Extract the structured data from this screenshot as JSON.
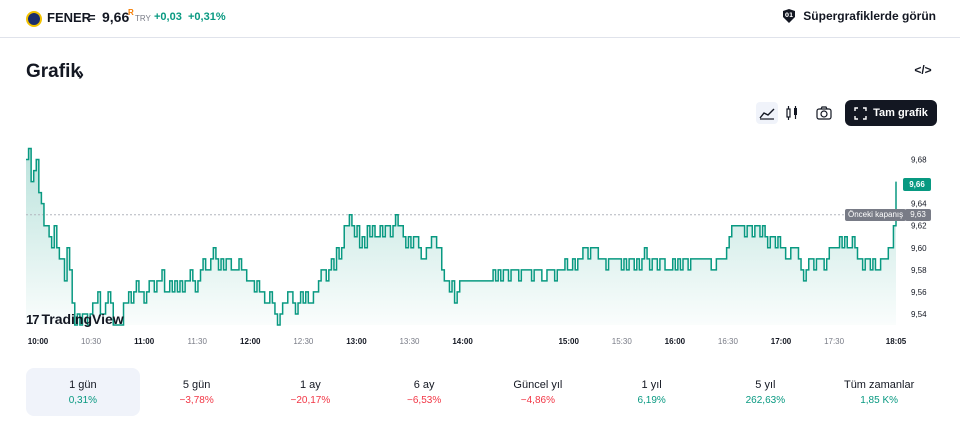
{
  "symbol": {
    "name": "FENER",
    "equals": "=",
    "price": "9,66",
    "r_mark": "R",
    "currency": "TRY",
    "change": "+0,03",
    "change_pct": "+0,31%"
  },
  "header": {
    "super_charts_label": "Süpergrafiklerde görün"
  },
  "section": {
    "title": "Grafik",
    "chevron": "›",
    "embed_label": "</>"
  },
  "toolbar": {
    "full_chart_label": "Tam grafik"
  },
  "icons": {
    "area": "area-chart-icon",
    "candles": "candles-icon",
    "camera": "camera-icon",
    "fullscreen": "fullscreen-icon",
    "super": "supercharts-icon"
  },
  "colors": {
    "accent_green": "#089981",
    "negative_red": "#f23645",
    "text": "#131722",
    "muted": "#787b86"
  },
  "chart_data": {
    "type": "area",
    "x_ticks": [
      "10:00",
      "10:30",
      "11:00",
      "11:30",
      "12:00",
      "12:30",
      "13:00",
      "13:30",
      "14:00",
      "15:00",
      "15:30",
      "16:00",
      "16:30",
      "17:00",
      "17:30",
      "18:05"
    ],
    "y_ticks": [
      "9,68",
      "9,66",
      "9,64",
      "9,62",
      "9,60",
      "9,58",
      "9,56",
      "9,54"
    ],
    "ylim": [
      9.53,
      9.695
    ],
    "previous_close_label": "Önceki kapanış",
    "previous_close_value": "9,63",
    "last_price_label": "9,66",
    "series": [
      {
        "values": [
          9.68,
          9.69,
          9.66,
          9.67,
          9.68,
          9.65,
          9.64,
          9.62,
          9.62,
          9.61,
          9.6,
          9.62,
          9.6,
          9.59,
          9.59,
          9.57,
          9.6,
          9.58,
          9.55,
          9.53,
          9.54,
          9.53,
          9.54,
          9.54,
          9.53,
          9.54,
          9.55,
          9.55,
          9.56,
          9.54,
          9.54,
          9.55,
          9.56,
          9.55,
          9.53,
          9.53,
          9.53,
          9.53,
          9.55,
          9.55,
          9.56,
          9.55,
          9.56,
          9.57,
          9.56,
          9.56,
          9.55,
          9.56,
          9.57,
          9.57,
          9.56,
          9.57,
          9.57,
          9.58,
          9.56,
          9.56,
          9.57,
          9.56,
          9.57,
          9.56,
          9.57,
          9.56,
          9.57,
          9.57,
          9.58,
          9.57,
          9.56,
          9.57,
          9.58,
          9.59,
          9.58,
          9.58,
          9.59,
          9.6,
          9.59,
          9.58,
          9.59,
          9.58,
          9.59,
          9.59,
          9.58,
          9.58,
          9.58,
          9.59,
          9.58,
          9.58,
          9.57,
          9.57,
          9.57,
          9.56,
          9.57,
          9.56,
          9.56,
          9.55,
          9.55,
          9.56,
          9.55,
          9.54,
          9.53,
          9.54,
          9.55,
          9.55,
          9.56,
          9.56,
          9.55,
          9.54,
          9.55,
          9.56,
          9.55,
          9.56,
          9.55,
          9.55,
          9.56,
          9.56,
          9.57,
          9.58,
          9.58,
          9.57,
          9.58,
          9.59,
          9.58,
          9.6,
          9.59,
          9.6,
          9.62,
          9.62,
          9.63,
          9.62,
          9.61,
          9.62,
          9.6,
          9.61,
          9.6,
          9.62,
          9.61,
          9.62,
          9.61,
          9.61,
          9.62,
          9.61,
          9.62,
          9.62,
          9.61,
          9.62,
          9.63,
          9.62,
          9.62,
          9.61,
          9.6,
          9.61,
          9.6,
          9.61,
          9.61,
          9.6,
          9.59,
          9.59,
          9.6,
          9.6,
          9.61,
          9.61,
          9.6,
          9.6,
          9.58,
          9.57,
          9.57,
          9.56,
          9.57,
          9.55,
          9.56,
          9.57,
          9.57,
          9.57,
          9.57,
          9.57,
          9.57,
          9.57,
          9.57,
          9.57,
          9.57,
          9.57,
          9.57,
          9.57,
          9.58,
          9.57,
          9.58,
          9.57,
          9.58,
          9.58,
          9.57,
          9.58,
          9.58,
          9.58,
          9.57,
          9.58,
          9.58,
          9.58,
          9.58,
          9.57,
          9.58,
          9.58,
          9.58,
          9.57,
          9.57,
          9.58,
          9.58,
          9.58,
          9.57,
          9.58,
          9.58,
          9.58,
          9.59,
          9.58,
          9.58,
          9.59,
          9.58,
          9.59,
          9.59,
          9.6,
          9.6,
          9.59,
          9.6,
          9.6,
          9.6,
          9.59,
          9.59,
          9.59,
          9.58,
          9.59,
          9.59,
          9.59,
          9.59,
          9.59,
          9.58,
          9.59,
          9.58,
          9.59,
          9.59,
          9.58,
          9.59,
          9.58,
          9.59,
          9.6,
          9.59,
          9.58,
          9.59,
          9.59,
          9.58,
          9.59,
          9.59,
          9.58,
          9.58,
          9.58,
          9.59,
          9.58,
          9.59,
          9.58,
          9.59,
          9.59,
          9.58,
          9.59,
          9.59,
          9.59,
          9.59,
          9.59,
          9.59,
          9.59,
          9.59,
          9.58,
          9.58,
          9.59,
          9.59,
          9.59,
          9.59,
          9.6,
          9.61,
          9.62,
          9.62,
          9.62,
          9.62,
          9.62,
          9.61,
          9.62,
          9.62,
          9.61,
          9.62,
          9.62,
          9.61,
          9.62,
          9.61,
          9.6,
          9.61,
          9.61,
          9.6,
          9.61,
          9.6,
          9.6,
          9.59,
          9.59,
          9.6,
          9.6,
          9.6,
          9.59,
          9.58,
          9.57,
          9.58,
          9.59,
          9.59,
          9.58,
          9.59,
          9.59,
          9.59,
          9.58,
          9.59,
          9.6,
          9.6,
          9.6,
          9.6,
          9.61,
          9.6,
          9.61,
          9.6,
          9.6,
          9.61,
          9.6,
          9.59,
          9.59,
          9.58,
          9.59,
          9.59,
          9.58,
          9.59,
          9.58,
          9.58,
          9.59,
          9.59,
          9.59,
          9.6,
          9.6,
          9.62,
          9.66
        ]
      }
    ],
    "grid": false,
    "legend": "none"
  },
  "periods": [
    {
      "label": "1 gün",
      "value": "0,31%",
      "sign": "pos",
      "active": true
    },
    {
      "label": "5 gün",
      "value": "−3,78%",
      "sign": "neg",
      "active": false
    },
    {
      "label": "1 ay",
      "value": "−20,17%",
      "sign": "neg",
      "active": false
    },
    {
      "label": "6 ay",
      "value": "−6,53%",
      "sign": "neg",
      "active": false
    },
    {
      "label": "Güncel yıl",
      "value": "−4,86%",
      "sign": "neg",
      "active": false
    },
    {
      "label": "1 yıl",
      "value": "6,19%",
      "sign": "pos",
      "active": false
    },
    {
      "label": "5 yıl",
      "value": "262,63%",
      "sign": "pos",
      "active": false
    },
    {
      "label": "Tüm zamanlar",
      "value": "1,85 K%",
      "sign": "pos",
      "active": false
    }
  ],
  "watermark": {
    "mark": "17",
    "text": "TradingView"
  }
}
